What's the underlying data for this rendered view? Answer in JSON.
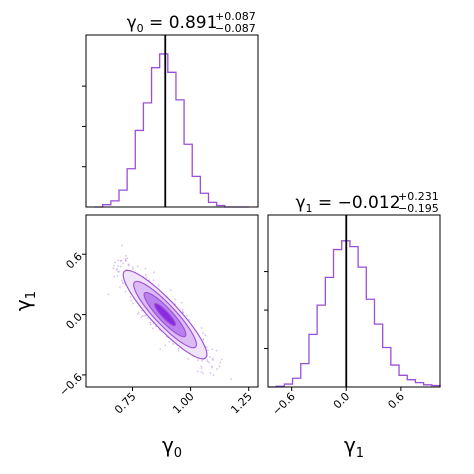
{
  "chart_data": [
    {
      "type": "histogram",
      "panel": "marginal-gamma0",
      "title": {
        "symbol": "γ",
        "sub": "0",
        "value": "0.891",
        "plus": "+0.087",
        "minus": "−0.087"
      },
      "bin_edges": [
        0.587,
        0.622,
        0.657,
        0.692,
        0.727,
        0.762,
        0.797,
        0.832,
        0.867,
        0.902,
        0.937,
        0.972,
        1.007,
        1.042,
        1.077,
        1.112,
        1.147,
        1.182,
        1.217,
        1.252
      ],
      "counts": [
        0.0,
        0.015,
        0.04,
        0.11,
        0.25,
        0.5,
        0.68,
        0.91,
        1.0,
        0.88,
        0.7,
        0.41,
        0.2,
        0.09,
        0.03,
        0.01,
        0.0,
        0.0,
        0.0
      ],
      "xlim": [
        0.55,
        1.29
      ],
      "marker": 0.891,
      "color": "#9b4fd6"
    },
    {
      "type": "histogram",
      "panel": "marginal-gamma1",
      "title": {
        "symbol": "γ",
        "sub": "1",
        "value": "−0.012",
        "plus": "+0.231",
        "minus": "−0.195"
      },
      "bin_edges": [
        -0.86,
        -0.77,
        -0.68,
        -0.59,
        -0.5,
        -0.41,
        -0.32,
        -0.23,
        -0.14,
        -0.05,
        0.04,
        0.13,
        0.22,
        0.31,
        0.4,
        0.49,
        0.58,
        0.67,
        0.76,
        0.85,
        0.94,
        1.03
      ],
      "counts": [
        0.0,
        0.005,
        0.02,
        0.06,
        0.16,
        0.36,
        0.56,
        0.75,
        0.94,
        1.0,
        0.96,
        0.82,
        0.6,
        0.43,
        0.27,
        0.15,
        0.08,
        0.05,
        0.03,
        0.015,
        0.01
      ],
      "xlim": [
        -0.86,
        1.03
      ],
      "marker": 0.0,
      "color": "#9b4fd6"
    },
    {
      "type": "scatter",
      "panel": "joint-gamma0-gamma1",
      "x_center": 0.89,
      "y_center": 0.0,
      "x_sd": 0.09,
      "y_sd": 0.22,
      "correlation": -0.9,
      "xlim": [
        0.55,
        1.29
      ],
      "ylim": [
        -0.72,
        0.99
      ],
      "contour_levels": [
        0.5,
        1.0,
        1.5,
        2.0
      ],
      "contour_fills": [
        "#f0e4fb",
        "#dcbcf5",
        "#b981ec",
        "#8a2be2"
      ],
      "color": "#9b4fd6"
    }
  ],
  "axes": {
    "xlabel_joint": {
      "symbol": "γ",
      "sub": "0"
    },
    "ylabel_joint": {
      "symbol": "γ",
      "sub": "1"
    },
    "xlabel_marg": {
      "symbol": "γ",
      "sub": "1"
    },
    "xticks_joint": [
      "0.75",
      "1.00",
      "1.25"
    ],
    "xticks_joint_values": [
      0.75,
      1.0,
      1.25
    ],
    "yticks_joint": [
      "−0.6",
      "0.0",
      "0.6"
    ],
    "yticks_joint_values": [
      -0.6,
      0.0,
      0.6
    ],
    "xticks_marg": [
      "−0.6",
      "0.0",
      "0.6"
    ],
    "xticks_marg_values": [
      -0.6,
      0.0,
      0.6
    ]
  }
}
